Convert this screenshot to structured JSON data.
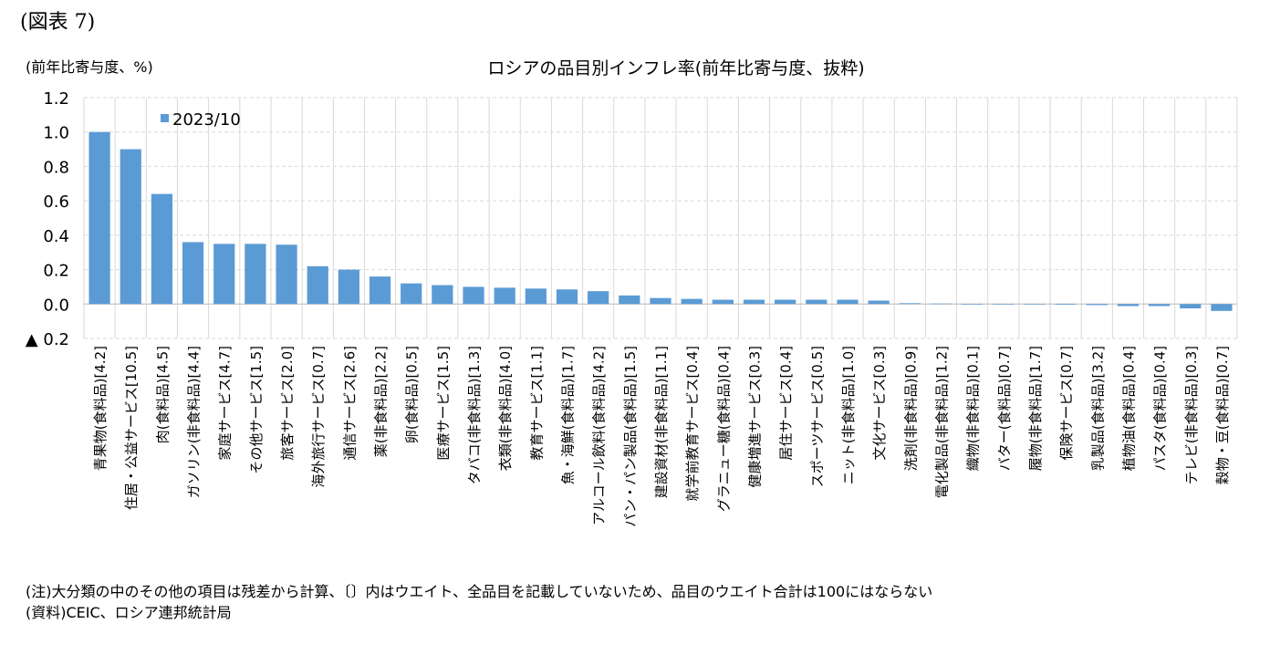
{
  "figure_label": "(図表 7)",
  "unit_label": "(前年比寄与度、%)",
  "note": "(注)大分類の中のその他の項目は残差から計算、〔〕内はウエイト、全品目を記載していないため、品目のウエイト合計は100にはならない",
  "source": "(資料)CEIC、ロシア連邦統計局",
  "colors": {
    "bar": "#5b9bd5",
    "grid": "#d9d9d9"
  },
  "chart_data": {
    "type": "bar",
    "title": "ロシアの品目別インフレ率(前年比寄与度、抜粋)",
    "ylim": [
      -0.2,
      1.2
    ],
    "yticks": [
      1.2,
      1.0,
      0.8,
      0.6,
      0.4,
      0.2,
      0.0,
      -0.2
    ],
    "ytick_labels": [
      "1.2",
      "1.0",
      "0.8",
      "0.6",
      "0.4",
      "0.2",
      "0.0",
      "▲ 0.2"
    ],
    "legend": "top-left",
    "grid": true,
    "series": [
      {
        "name": "2023/10",
        "values": [
          1.0,
          0.9,
          0.64,
          0.36,
          0.35,
          0.35,
          0.345,
          0.22,
          0.2,
          0.16,
          0.12,
          0.11,
          0.1,
          0.095,
          0.09,
          0.085,
          0.075,
          0.05,
          0.035,
          0.03,
          0.025,
          0.025,
          0.025,
          0.025,
          0.025,
          0.02,
          0.005,
          0.003,
          0.0,
          0.0,
          -0.002,
          -0.004,
          -0.006,
          -0.012,
          -0.012,
          -0.025,
          -0.04
        ]
      }
    ],
    "categories": [
      "青果物(食料品)[4.2]",
      "住居・公益サービス[10.5]",
      "肉(食料品)[4.5]",
      "ガソリン(非食料品)[4.4]",
      "家庭サービス[4.7]",
      "その他サービス[1.5]",
      "旅客サービス[2.0]",
      "海外旅行サービス[0.7]",
      "通信サービス[2.6]",
      "薬(非食料品)[2.2]",
      "卵(食料品)[0.5]",
      "医療サービス[1.5]",
      "タバコ(非食料品)[1.3]",
      "衣類(非食料品)[4.0]",
      "教育サービス[1.1]",
      "魚・海鮮(食料品)[1.7]",
      "アルコール飲料(食料品)[4.2]",
      "パン・パン製品(食料品)[1.5]",
      "建設資材(非食料品)[1.1]",
      "就学前教育サービス[0.4]",
      "グラニュー糖(食料品)[0.4]",
      "健康増進サービス[0.3]",
      "居住サービス[0.4]",
      "スポーツサービス[0.5]",
      "ニット(非食料品)[1.0]",
      "文化サービス[0.3]",
      "洗剤(非食料品)[0.9]",
      "電化製品(非食料品)[1.2]",
      "織物(非食料品)[0.1]",
      "バター(食料品)[0.7]",
      "履物(非食料品)[1.7]",
      "保険サービス[0.7]",
      "乳製品(食料品)[3.2]",
      "植物油(食料品)[0.4]",
      "パスタ(食料品)[0.4]",
      "テレビ(非食料品)[0.3]",
      "穀物・豆(食料品)[0.7]"
    ]
  }
}
